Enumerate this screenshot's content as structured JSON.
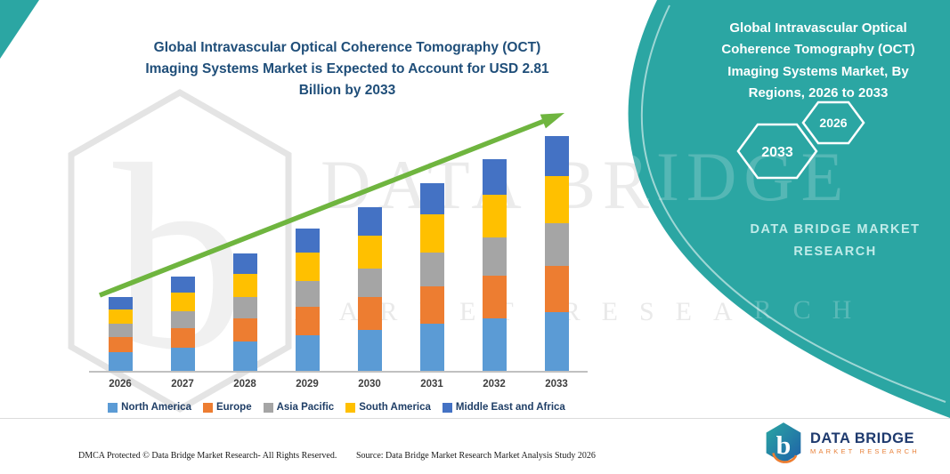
{
  "colors": {
    "accent_teal": "#2BA6A3",
    "title_blue": "#1F4E79",
    "arrow_green": "#6FB53F",
    "logo_navy": "#1E3A6E",
    "logo_orange": "#E8823B"
  },
  "header": {
    "title_lines": [
      "Global Intravascular Optical Coherence Tomography (OCT)",
      "Imaging Systems Market is Expected to Account for USD 2.81",
      "Billion by 2033"
    ]
  },
  "chart_data": {
    "type": "bar",
    "stacked": true,
    "title": "Global Intravascular Optical Coherence Tomography (OCT) Imaging Systems Market is Expected to Account for USD 2.81 Billion by 2033",
    "unit": "USD Billion",
    "categories": [
      "2026",
      "2027",
      "2028",
      "2029",
      "2030",
      "2031",
      "2032",
      "2033"
    ],
    "series": [
      {
        "name": "North America",
        "color": "#5B9BD5",
        "values": [
          0.22,
          0.28,
          0.35,
          0.43,
          0.49,
          0.56,
          0.63,
          0.7
        ]
      },
      {
        "name": "Europe",
        "color": "#ED7D31",
        "values": [
          0.18,
          0.23,
          0.28,
          0.34,
          0.39,
          0.45,
          0.51,
          0.56
        ]
      },
      {
        "name": "Asia Pacific",
        "color": "#A5A5A5",
        "values": [
          0.16,
          0.2,
          0.25,
          0.31,
          0.35,
          0.41,
          0.46,
          0.51
        ]
      },
      {
        "name": "South America",
        "color": "#FFC000",
        "values": [
          0.18,
          0.23,
          0.28,
          0.34,
          0.39,
          0.45,
          0.51,
          0.56
        ]
      },
      {
        "name": "Middle East and Africa",
        "color": "#4472C4",
        "values": [
          0.14,
          0.19,
          0.25,
          0.28,
          0.34,
          0.38,
          0.42,
          0.48
        ]
      }
    ],
    "totals": [
      0.88,
      1.13,
      1.41,
      1.7,
      1.96,
      2.25,
      2.53,
      2.81
    ],
    "ylim": [
      0,
      3
    ],
    "grid": false,
    "legend_position": "bottom",
    "trend_arrow": true
  },
  "right_panel": {
    "title_lines": [
      "Global Intravascular Optical",
      "Coherence Tomography (OCT)",
      "Imaging Systems Market, By",
      "Regions, 2026 to 2033"
    ],
    "hexagons": [
      "2033",
      "2026"
    ],
    "brand_text": "DATA BRIDGE MARKET RESEARCH"
  },
  "watermark": {
    "title": "DATA BRIDGE",
    "subtitle": "MARKET RESEARCH",
    "monogram": "b"
  },
  "footer": {
    "dmca": "DMCA Protected © Data Bridge Market Research-  All Rights Reserved.",
    "source": "Source: Data Bridge Market Research  Market Analysis Study 2026"
  },
  "logo": {
    "name": "DATA BRIDGE",
    "sub": "MARKET RESEARCH",
    "monogram": "b"
  }
}
